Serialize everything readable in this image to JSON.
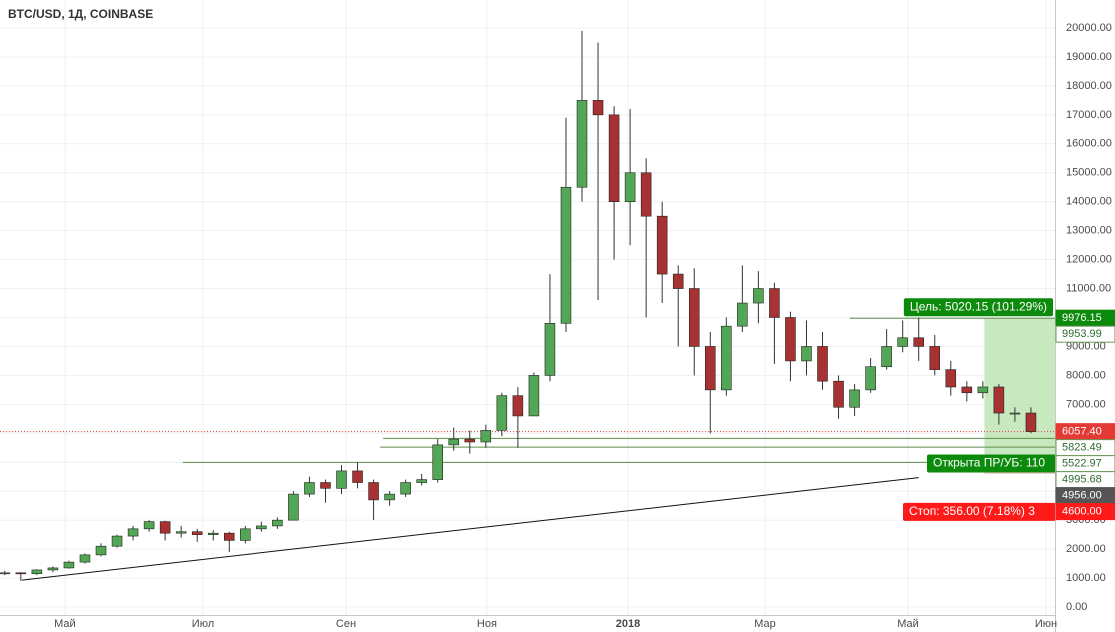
{
  "chart_data": {
    "type": "candlestick",
    "title": "BTC/USD, 1Д, COINBASE",
    "up_color": "#53a653",
    "down_color": "#a83232",
    "grid": true,
    "xlim": [
      -0.3,
      65.5
    ],
    "xticks": [
      {
        "value": 3.75,
        "label": "Май"
      },
      {
        "value": 12.36,
        "label": "Июл"
      },
      {
        "value": 21.28,
        "label": "Сен"
      },
      {
        "value": 30.07,
        "label": "Ноя"
      },
      {
        "value": 38.87,
        "label": "2018",
        "bold": true
      },
      {
        "value": 47.41,
        "label": "Мар"
      },
      {
        "value": 56.33,
        "label": "Май"
      },
      {
        "value": 64.94,
        "label": "Июн"
      }
    ],
    "ylim": [
      0,
      20000
    ],
    "yticks": [
      {
        "value": 0,
        "label": "0.00"
      },
      {
        "value": 1000,
        "label": "1000.00"
      },
      {
        "value": 2000,
        "label": "2000.00"
      },
      {
        "value": 3000,
        "label": "3000.00"
      },
      {
        "value": 4000,
        "label": "4000.00"
      },
      {
        "value": 5000,
        "label": "5000.00"
      },
      {
        "value": 6000,
        "label": "6000.00"
      },
      {
        "value": 7000,
        "label": "7000.00"
      },
      {
        "value": 8000,
        "label": "8000.00"
      },
      {
        "value": 9000,
        "label": "9000.00"
      },
      {
        "value": 10000,
        "label": "10000.00"
      },
      {
        "value": 11000,
        "label": "11000.00"
      },
      {
        "value": 12000,
        "label": "12000.00"
      },
      {
        "value": 13000,
        "label": "13000.00"
      },
      {
        "value": 14000,
        "label": "14000.00"
      },
      {
        "value": 15000,
        "label": "15000.00"
      },
      {
        "value": 16000,
        "label": "16000.00"
      },
      {
        "value": 17000,
        "label": "17000.00"
      },
      {
        "value": 18000,
        "label": "18000.00"
      },
      {
        "value": 19000,
        "label": "19000.00"
      },
      {
        "value": 20000,
        "label": "20000.00"
      }
    ],
    "open": [
      1150,
      1180,
      1150,
      1280,
      1350,
      1550,
      1800,
      2100,
      2450,
      2700,
      2950,
      2550,
      2600,
      2500,
      2550,
      2300,
      2700,
      2800,
      3000,
      3900,
      4300,
      4100,
      4700,
      4300,
      3700,
      3900,
      4300,
      4400,
      5600,
      5800,
      5700,
      6100,
      7300,
      6600,
      8000,
      9800,
      14500,
      17500,
      17000,
      14000,
      15000,
      13500,
      11500,
      11000,
      9000,
      7500,
      9700,
      10500,
      11000,
      10000,
      8500,
      9000,
      7800,
      6900,
      7500,
      8300,
      9000,
      9300,
      9000,
      8200,
      7600,
      7400,
      7600,
      6700,
      6700
    ],
    "high": [
      1250,
      1200,
      1300,
      1400,
      1600,
      1850,
      2200,
      2500,
      2800,
      3000,
      2980,
      2800,
      2700,
      2650,
      2600,
      2800,
      2950,
      3100,
      4000,
      4500,
      4400,
      4900,
      5000,
      4400,
      4000,
      4400,
      4600,
      5800,
      6200,
      6100,
      6300,
      7400,
      7600,
      8100,
      11500,
      16900,
      19900,
      19500,
      17300,
      17200,
      15500,
      14000,
      11800,
      11700,
      9500,
      10000,
      11800,
      11600,
      11200,
      10200,
      9900,
      9500,
      8000,
      7700,
      8600,
      9600,
      9900,
      10000,
      9400,
      8500,
      7800,
      7800,
      7700,
      6900,
      6900
    ],
    "low": [
      1100,
      900,
      1100,
      1200,
      1320,
      1500,
      1750,
      2050,
      2300,
      2600,
      2300,
      2400,
      2250,
      2300,
      1900,
      2200,
      2600,
      2700,
      3000,
      3800,
      3600,
      3900,
      4100,
      3000,
      3500,
      3800,
      4200,
      4300,
      5400,
      5300,
      5500,
      5900,
      5500,
      6600,
      7800,
      9500,
      14000,
      10600,
      12000,
      12500,
      10000,
      10500,
      9000,
      8000,
      6000,
      7300,
      9500,
      9800,
      8400,
      7800,
      8000,
      7500,
      6500,
      6600,
      7400,
      8200,
      8800,
      8500,
      8000,
      7300,
      7100,
      7200,
      6300,
      6400,
      6000
    ],
    "close": [
      1180,
      1150,
      1280,
      1350,
      1550,
      1800,
      2100,
      2450,
      2700,
      2950,
      2550,
      2600,
      2500,
      2550,
      2300,
      2700,
      2800,
      3000,
      3900,
      4300,
      4100,
      4700,
      4300,
      3700,
      3900,
      4300,
      4400,
      5600,
      5800,
      5700,
      6100,
      7300,
      6600,
      8000,
      9800,
      14500,
      17500,
      17000,
      14000,
      15000,
      13500,
      11500,
      11000,
      9000,
      7500,
      9700,
      10500,
      11000,
      10000,
      8500,
      9000,
      7800,
      6900,
      7500,
      8300,
      9000,
      9300,
      9000,
      8200,
      7600,
      7400,
      7600,
      6700,
      6700,
      6057.4
    ],
    "trendline": {
      "x": [
        1.07,
        57.0
      ],
      "values": [
        930,
        4470
      ],
      "color": "#111111"
    },
    "price_labels": [
      {
        "value": 9976.15,
        "label": "9976.15",
        "bg": "#0b8a0b",
        "fg": "#ffffff",
        "line_from": 52.7,
        "line_color": "#5b8f4a"
      },
      {
        "value": 9953.99,
        "label": "9953.99",
        "bg": "#ffffff",
        "fg": "#2e6b2e"
      },
      {
        "value": 6057.4,
        "label": "6057.40",
        "bg": "#e53935",
        "fg": "#ffffff",
        "line_from": -0.3,
        "line_color": "#e53935",
        "dotted": true
      },
      {
        "value": 5823.49,
        "label": "5823.49",
        "bg": "#ffffff",
        "fg": "#2e6b2e",
        "line_from": 23.6,
        "line_color": "#5b8f4a"
      },
      {
        "value": 5522.97,
        "label": "5522.97",
        "bg": "#ffffff",
        "fg": "#2e6b2e",
        "line_from": 23.4,
        "line_color": "#5b8f4a"
      },
      {
        "value": 4995.68,
        "label": "4995.68",
        "bg": "#ffffff",
        "fg": "#2e6b2e",
        "line_from": 11.1,
        "line_color": "#5b8f4a"
      },
      {
        "value": 4956.0,
        "label": "4956.00",
        "bg": "#555555",
        "fg": "#ffffff"
      },
      {
        "value": 4600.0,
        "label": "4600.00",
        "bg": "#ff1a1a",
        "fg": "#ffffff"
      }
    ],
    "position": {
      "from": 61.1,
      "entry": 4956.0,
      "target": 9976.15,
      "stop": 4600.0,
      "target_label": "Цель: 5020.15 (101.29%)",
      "open_label": "Открыта ПР/УБ: 110",
      "stop_label": "Стоп: 356.00 (7.18%) 3",
      "profit_color": "#c8e8c0",
      "loss_color": "#f7c6c6"
    }
  }
}
